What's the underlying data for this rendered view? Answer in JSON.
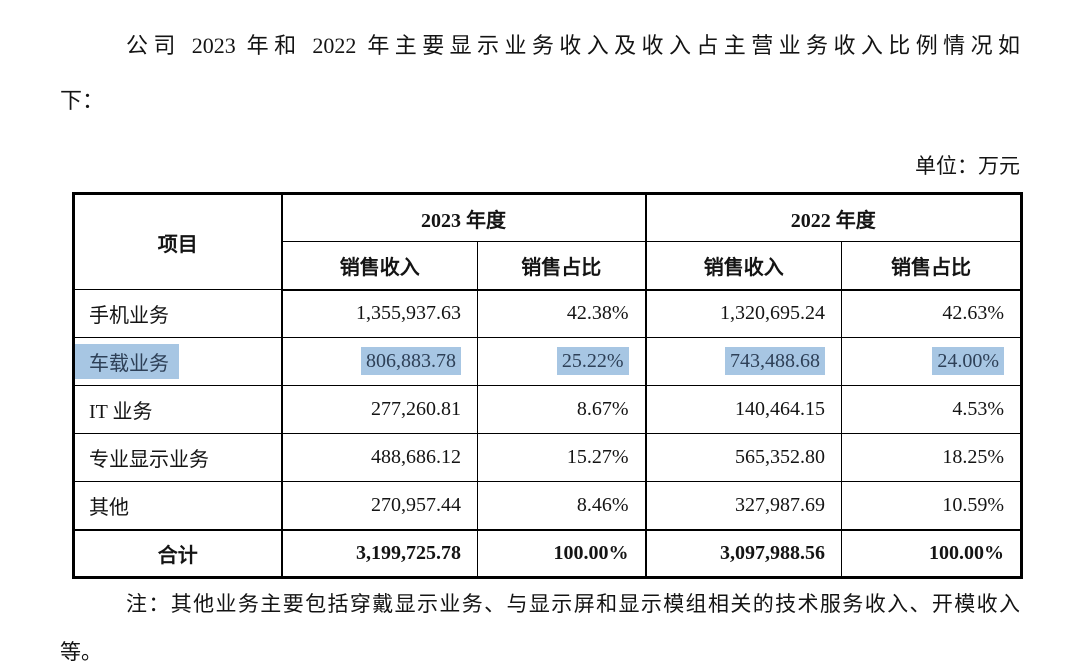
{
  "page": {
    "intro_line1": "公司 2023 年和 2022 年主要显示业务收入及收入占主营业务收入比例情况如",
    "intro_line2": "下：",
    "unit_label": "单位：万元",
    "note_line1": "注：其他业务主要包括穿戴显示业务、与显示屏和显示模组相关的技术服务收入、开模收入",
    "note_line2": "等。"
  },
  "table": {
    "header": {
      "item": "项目",
      "year_2023": "2023 年度",
      "year_2022": "2022 年度",
      "sales_revenue": "销售收入",
      "sales_ratio": "销售占比"
    },
    "rows": [
      {
        "item": "手机业务",
        "rev_2023": "1,355,937.63",
        "ratio_2023": "42.38%",
        "rev_2022": "1,320,695.24",
        "ratio_2022": "42.63%",
        "highlighted": false
      },
      {
        "item": "车载业务",
        "rev_2023": "806,883.78",
        "ratio_2023": "25.22%",
        "rev_2022": "743,488.68",
        "ratio_2022": "24.00%",
        "highlighted": true
      },
      {
        "item": "IT 业务",
        "rev_2023": "277,260.81",
        "ratio_2023": "8.67%",
        "rev_2022": "140,464.15",
        "ratio_2022": "4.53%",
        "highlighted": false
      },
      {
        "item": "专业显示业务",
        "rev_2023": "488,686.12",
        "ratio_2023": "15.27%",
        "rev_2022": "565,352.80",
        "ratio_2022": "18.25%",
        "highlighted": false
      },
      {
        "item": "其他",
        "rev_2023": "270,957.44",
        "ratio_2023": "8.46%",
        "rev_2022": "327,987.69",
        "ratio_2022": "10.59%",
        "highlighted": false
      }
    ],
    "total_row": {
      "item": "合计",
      "rev_2023": "3,199,725.78",
      "ratio_2023": "100.00%",
      "rev_2022": "3,097,988.56",
      "ratio_2022": "100.00%"
    }
  },
  "colors": {
    "highlight": "#a7c6e3",
    "text": "#141414",
    "border": "#000000"
  }
}
